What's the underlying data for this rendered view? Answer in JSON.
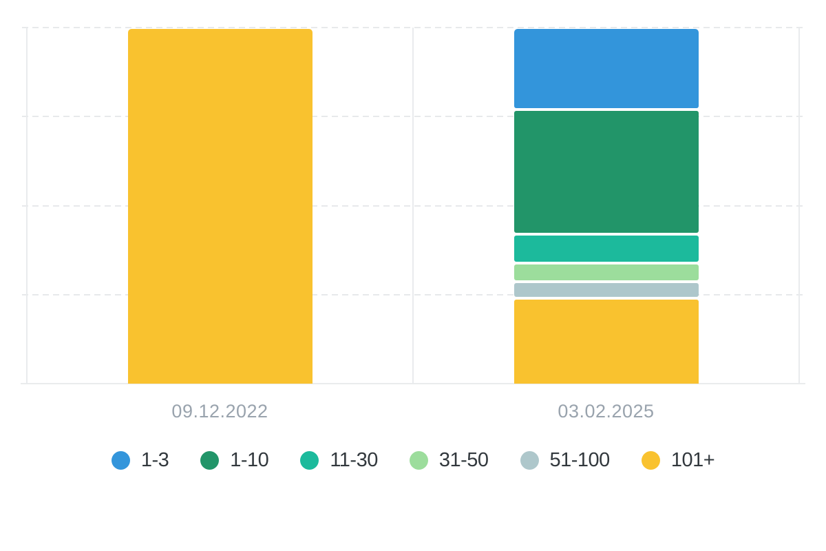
{
  "chart_data": {
    "type": "bar",
    "variant": "stacked-100-percent-column",
    "title": "",
    "xlabel": "",
    "ylabel": "",
    "categories": [
      "09.12.2022",
      "03.02.2025"
    ],
    "series": [
      {
        "name": "1-3",
        "color": "#3395db",
        "values": [
          0,
          23.3
        ]
      },
      {
        "name": "1-10",
        "color": "#229569",
        "values": [
          0,
          35.7
        ]
      },
      {
        "name": "11-30",
        "color": "#1cba9c",
        "values": [
          0,
          7.7
        ]
      },
      {
        "name": "31-50",
        "color": "#9cdd9c",
        "values": [
          0,
          4.7
        ]
      },
      {
        "name": "51-100",
        "color": "#aec7cb",
        "values": [
          0,
          4.0
        ]
      },
      {
        "name": "101+",
        "color": "#f9c22f",
        "values": [
          100,
          24.6
        ]
      }
    ],
    "unit": "percent",
    "ylim": [
      0,
      100
    ],
    "yticks": [
      0,
      25,
      50,
      75,
      100
    ],
    "ytick_labels_visible": false,
    "grid": "dashed-horizontal",
    "legend_position": "bottom"
  },
  "style": {
    "background": "#ffffff",
    "grid_color": "#e7e9eb",
    "axis_line_color": "#eaeced",
    "panel_border_color": "#e9ebed",
    "x_label_color": "#99a3ad",
    "legend_text_color": "#32383d"
  }
}
